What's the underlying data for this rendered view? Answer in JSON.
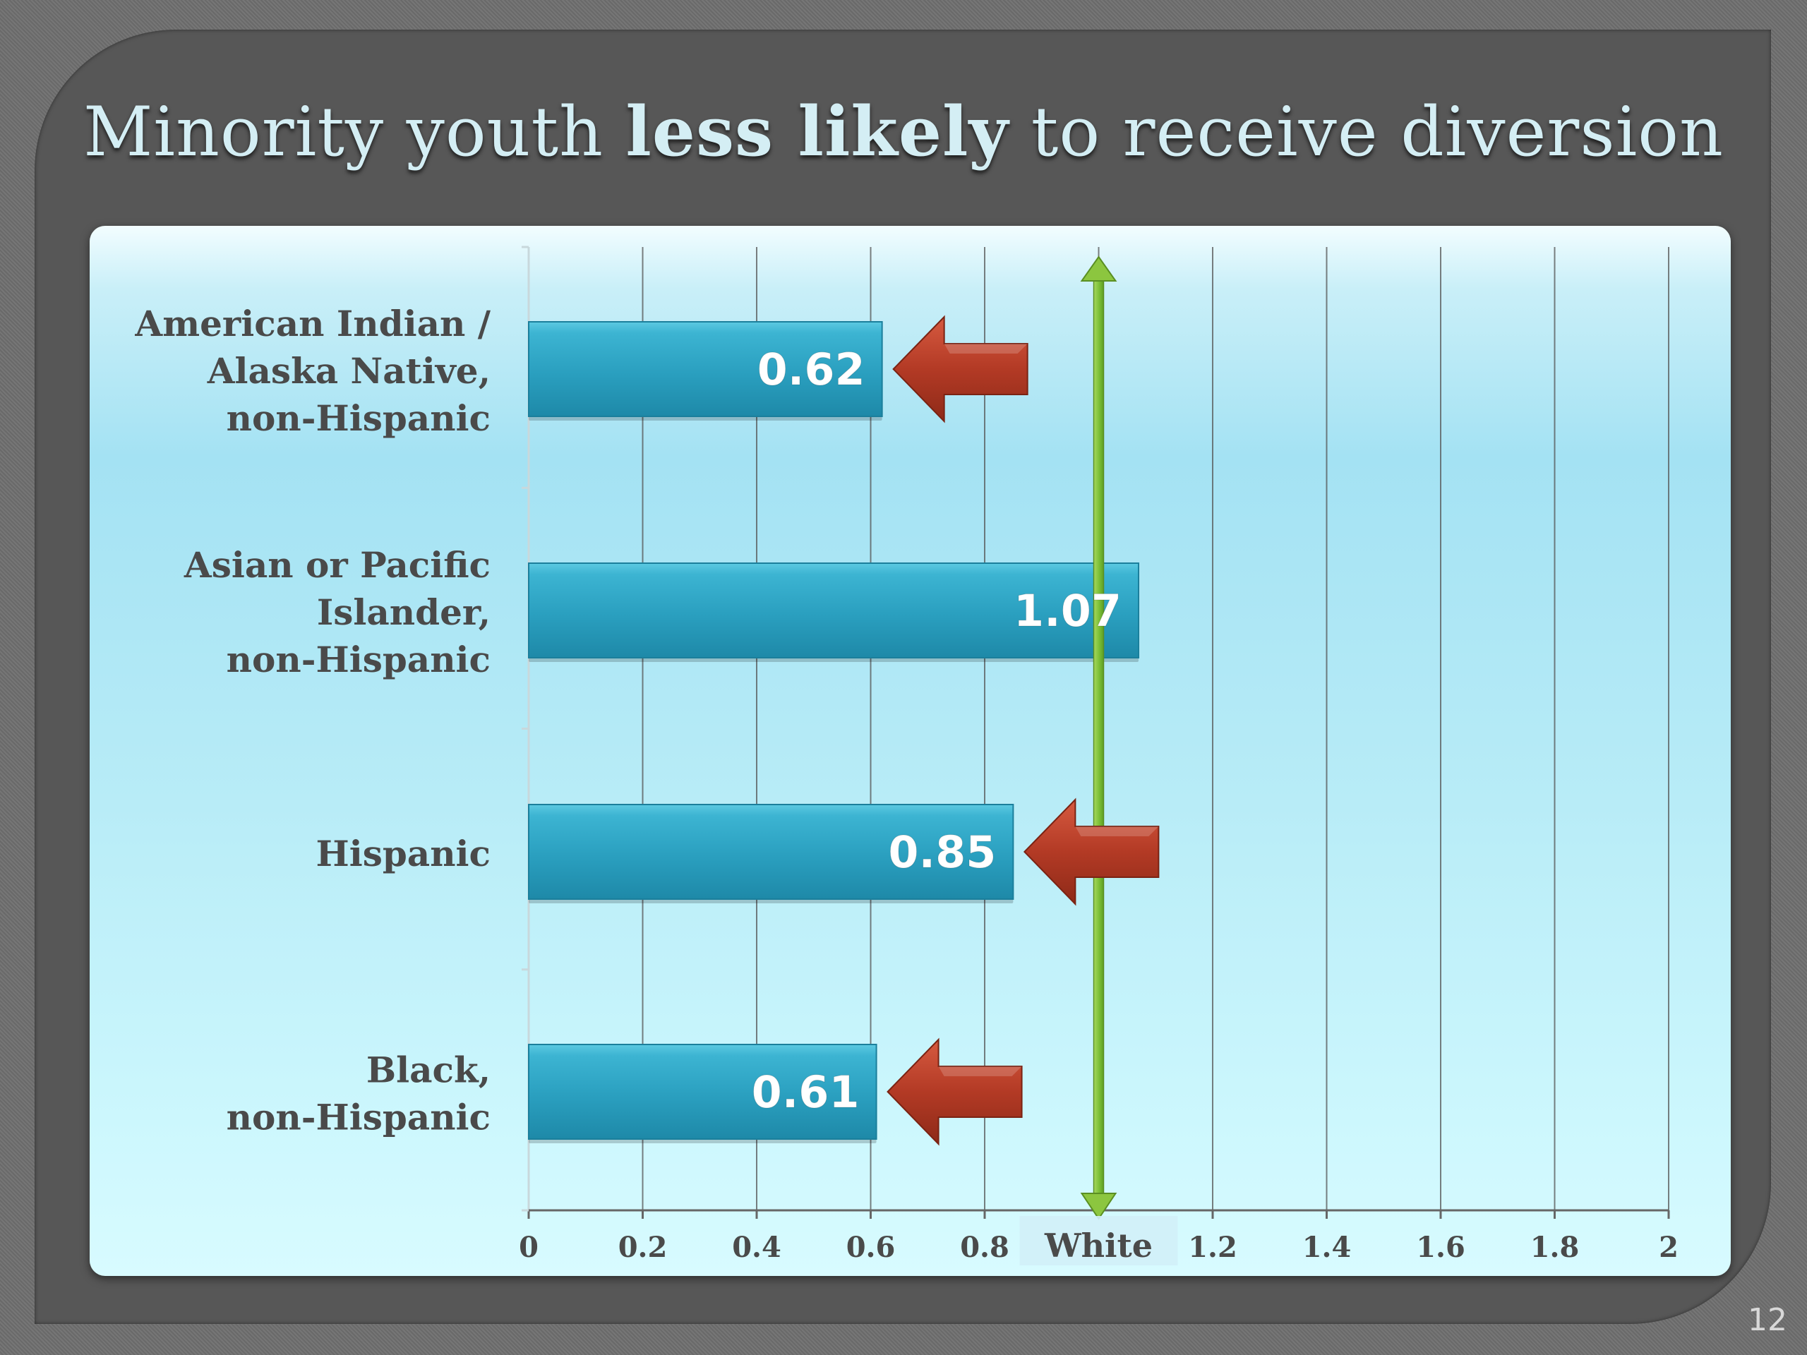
{
  "title": {
    "pre": "Minority youth ",
    "bold": "less likely",
    "post": " to receive diversion"
  },
  "slide_number": "12",
  "colors": {
    "bar": "#2aa6c4",
    "arrow": "#b23a26",
    "reference_line": "#8cc63f",
    "text": "#4a4a4a",
    "value_label": "#ffffff"
  },
  "chart_data": {
    "type": "bar",
    "orientation": "horizontal",
    "categories": [
      [
        "American Indian /",
        "Alaska Native,",
        "non-Hispanic"
      ],
      [
        "Asian or Pacific",
        "Islander,",
        "non-Hispanic"
      ],
      [
        "Hispanic"
      ],
      [
        "Black,",
        "non-Hispanic"
      ]
    ],
    "values": [
      0.62,
      1.07,
      0.85,
      0.61
    ],
    "data_labels": [
      "0.62",
      "1.07",
      "0.85",
      "0.61"
    ],
    "arrows": [
      true,
      false,
      true,
      true
    ],
    "xlim": [
      0,
      2
    ],
    "xticks": [
      0,
      0.2,
      0.4,
      0.6,
      0.8,
      1.0,
      1.2,
      1.4,
      1.6,
      1.8,
      2
    ],
    "xtick_labels": [
      "0",
      "0.2",
      "0.4",
      "0.6",
      "0.8",
      "White",
      "1.2",
      "1.4",
      "1.6",
      "1.8",
      "2"
    ],
    "reference_line": {
      "value": 1.0
    },
    "grid": true
  }
}
